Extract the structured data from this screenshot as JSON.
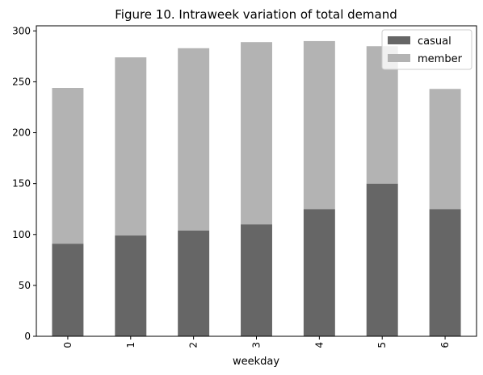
{
  "chart_data": {
    "type": "bar",
    "stacked": true,
    "title": "Figure 10. Intraweek variation of total demand",
    "xlabel": "weekday",
    "ylabel": "",
    "categories": [
      "0",
      "1",
      "2",
      "3",
      "4",
      "5",
      "6"
    ],
    "series": [
      {
        "name": "casual",
        "color": "#666666",
        "values": [
          91,
          99,
          104,
          110,
          125,
          150,
          125
        ]
      },
      {
        "name": "member",
        "color": "#b3b3b3",
        "values": [
          153,
          175,
          179,
          179,
          165,
          135,
          118
        ]
      }
    ],
    "ylim": [
      0,
      305
    ],
    "yticks": [
      0,
      50,
      100,
      150,
      200,
      250,
      300
    ],
    "grid": false,
    "legend_position": "top-right",
    "x_tick_rotation": "vertical"
  }
}
